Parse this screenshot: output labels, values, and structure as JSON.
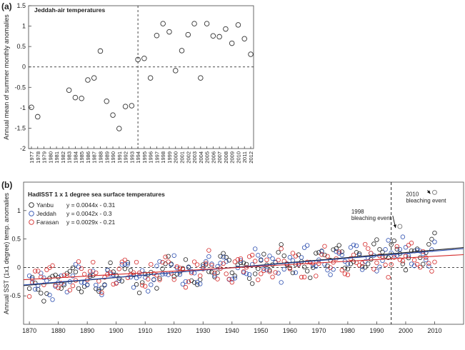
{
  "chart_data": [
    {
      "panel_label": "(a)",
      "type": "scatter",
      "title": "Jeddah-air temperatures",
      "ylabel": "Annual mean of summer monthly anomalies",
      "xlabel": "",
      "x_ticks": [
        "1977",
        "1978",
        "1979",
        "1980",
        "1981",
        "1982",
        "1983",
        "1984",
        "1985",
        "1986",
        "1987",
        "1988",
        "1989",
        "1990",
        "1991",
        "1992",
        "1993",
        "1994",
        "1995",
        "1996",
        "1997",
        "1998",
        "1999",
        "2000",
        "2001",
        "2002",
        "2003",
        "2004",
        "2005",
        "2006",
        "2007",
        "2008",
        "2009",
        "2010",
        "2011",
        "2012"
      ],
      "ylim": [
        -2,
        1.5
      ],
      "y_ticks": [
        "-2",
        "-1.5",
        "-1",
        "-0.5",
        "0",
        "0.5",
        "1",
        "1.5"
      ],
      "reference_vline_x": 1994,
      "reference_hline_y": 0,
      "grid": false,
      "series": [
        {
          "color": "#333333",
          "x": [
            1977,
            1978,
            1983,
            1984,
            1985,
            1986,
            1987,
            1988,
            1989,
            1990,
            1991,
            1992,
            1993,
            1994,
            1995,
            1996,
            1997,
            1998,
            1999,
            2000,
            2001,
            2002,
            2003,
            2004,
            2005,
            2006,
            2007,
            2008,
            2009,
            2010,
            2011,
            2012
          ],
          "y": [
            -0.99,
            -1.22,
            -0.57,
            -0.75,
            -0.77,
            -0.32,
            -0.27,
            0.39,
            -0.84,
            -1.18,
            -1.51,
            -0.97,
            -0.95,
            0.18,
            0.21,
            -0.27,
            0.77,
            1.06,
            0.86,
            -0.09,
            0.4,
            0.79,
            1.06,
            -0.27,
            1.06,
            0.76,
            0.74,
            0.93,
            0.58,
            1.03,
            0.69,
            0.31
          ]
        }
      ]
    },
    {
      "panel_label": "(b)",
      "type": "scatter",
      "title": "HadISST 1 x 1 degree sea surface temperatures",
      "ylabel": "Annual SST (1x1 degree) temp. anomalies",
      "xlabel": "",
      "xlim": [
        1868,
        2020
      ],
      "ylim": [
        -1,
        1.5
      ],
      "x_ticks": [
        "1870",
        "1880",
        "1890",
        "1900",
        "1910",
        "1920",
        "1930",
        "1940",
        "1950",
        "1960",
        "1970",
        "1980",
        "1990",
        "2000",
        "2010"
      ],
      "y_ticks": [
        "-0.5",
        "0",
        "0.5",
        "1"
      ],
      "reference_vline_x": 1995,
      "reference_hline_y": 0,
      "grid": false,
      "legend_position": "top-left",
      "series": [
        {
          "name": "Yanbu",
          "color": "#222222",
          "equation": "y = 0.0044x - 0.31",
          "slope": 0.0044,
          "intercept": -0.31
        },
        {
          "name": "Jeddah",
          "color": "#2d4fb0",
          "equation": "y = 0.0042x - 0.3",
          "slope": 0.0042,
          "intercept": -0.3
        },
        {
          "name": "Farasan",
          "color": "#d42a2a",
          "equation": "y = 0.0029x - 0.21",
          "slope": 0.0029,
          "intercept": -0.21
        }
      ],
      "annotations": [
        {
          "text": "1998",
          "text2": "bleaching event",
          "x": 1998,
          "y": 0.72
        },
        {
          "text": "2010",
          "text2": "bleaching event",
          "x": 2010,
          "y": 1.32
        }
      ]
    }
  ]
}
